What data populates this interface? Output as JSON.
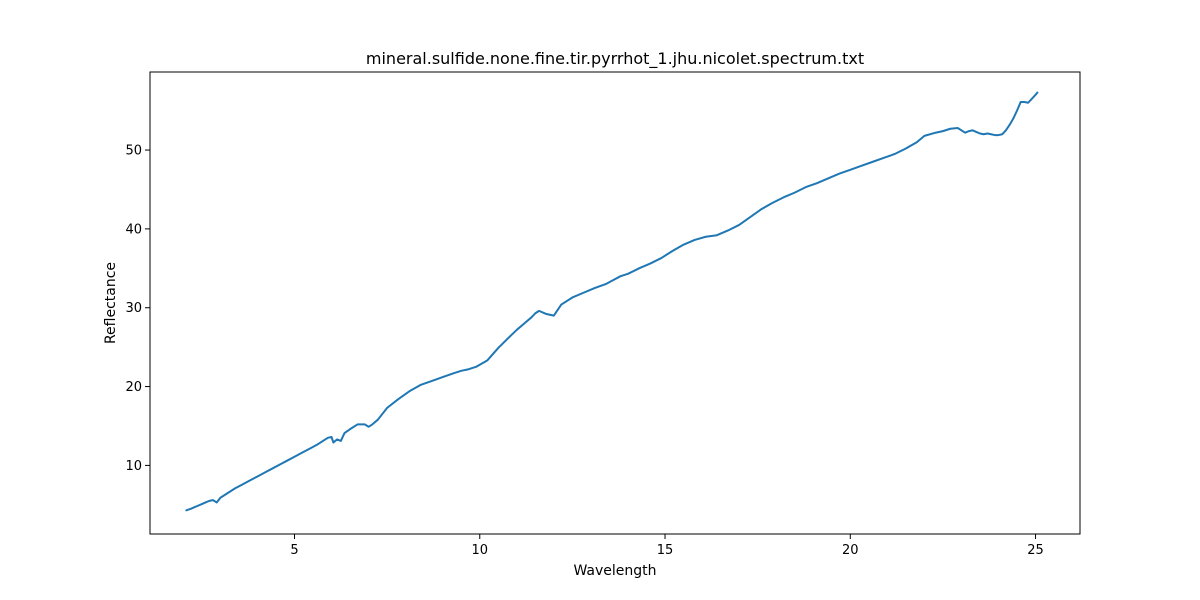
{
  "chart_data": {
    "type": "line",
    "title": "mineral.sulfide.none.fine.tir.pyrrhot_1.jhu.nicolet.spectrum.txt",
    "xlabel": "Wavelength",
    "ylabel": "Reflectance",
    "xlim": [
      1.1,
      26.2
    ],
    "ylim": [
      1.3,
      59.9
    ],
    "xticks": [
      5,
      10,
      15,
      20,
      25
    ],
    "yticks": [
      10,
      20,
      30,
      40,
      50
    ],
    "grid": false,
    "line_color": "#1f77b4",
    "series": [
      {
        "x": [
          2.08,
          2.2,
          2.3,
          2.4,
          2.5,
          2.6,
          2.7,
          2.8,
          2.9,
          3.0,
          3.1,
          3.2,
          3.3,
          3.4,
          3.6,
          3.8,
          4.0,
          4.2,
          4.4,
          4.6,
          4.8,
          5.0,
          5.2,
          5.4,
          5.6,
          5.8,
          5.9,
          6.0,
          6.05,
          6.15,
          6.25,
          6.35,
          6.5,
          6.7,
          6.9,
          7.0,
          7.1,
          7.25,
          7.5,
          7.8,
          8.1,
          8.4,
          8.7,
          9.0,
          9.3,
          9.5,
          9.7,
          9.9,
          10.2,
          10.5,
          10.8,
          11.0,
          11.2,
          11.4,
          11.5,
          11.6,
          11.8,
          12.0,
          12.2,
          12.5,
          12.8,
          13.1,
          13.4,
          13.6,
          13.8,
          14.0,
          14.3,
          14.6,
          14.9,
          15.2,
          15.5,
          15.8,
          16.1,
          16.4,
          16.7,
          17.0,
          17.3,
          17.6,
          17.9,
          18.2,
          18.5,
          18.8,
          19.1,
          19.4,
          19.7,
          20.0,
          20.3,
          20.6,
          20.9,
          21.2,
          21.5,
          21.8,
          22.0,
          22.3,
          22.5,
          22.7,
          22.9,
          23.0,
          23.1,
          23.2,
          23.3,
          23.4,
          23.5,
          23.6,
          23.7,
          23.8,
          23.9,
          24.0,
          24.1,
          24.2,
          24.3,
          24.4,
          24.5,
          24.6,
          24.7,
          24.8,
          24.9,
          25.0,
          25.05
        ],
        "y": [
          4.3,
          4.5,
          4.7,
          4.9,
          5.1,
          5.3,
          5.5,
          5.6,
          5.3,
          5.9,
          6.2,
          6.5,
          6.8,
          7.1,
          7.6,
          8.1,
          8.6,
          9.1,
          9.6,
          10.1,
          10.6,
          11.1,
          11.6,
          12.1,
          12.6,
          13.2,
          13.5,
          13.6,
          12.9,
          13.3,
          13.1,
          14.1,
          14.6,
          15.2,
          15.2,
          14.9,
          15.2,
          15.8,
          17.3,
          18.4,
          19.4,
          20.2,
          20.7,
          21.2,
          21.7,
          22.0,
          22.2,
          22.5,
          23.3,
          24.9,
          26.3,
          27.2,
          28.0,
          28.8,
          29.3,
          29.6,
          29.2,
          29.0,
          30.4,
          31.3,
          31.9,
          32.5,
          33.0,
          33.5,
          34.0,
          34.3,
          35.0,
          35.6,
          36.3,
          37.2,
          38.0,
          38.6,
          39.0,
          39.2,
          39.8,
          40.5,
          41.5,
          42.5,
          43.3,
          44.0,
          44.6,
          45.3,
          45.8,
          46.4,
          47.0,
          47.5,
          48.0,
          48.5,
          49.0,
          49.5,
          50.2,
          51.0,
          51.8,
          52.2,
          52.4,
          52.7,
          52.8,
          52.5,
          52.2,
          52.4,
          52.5,
          52.3,
          52.1,
          52.0,
          52.1,
          52.0,
          51.9,
          51.9,
          52.0,
          52.5,
          53.2,
          54.0,
          55.0,
          56.1,
          56.1,
          56.0,
          56.5,
          57.0,
          57.3
        ]
      }
    ]
  }
}
